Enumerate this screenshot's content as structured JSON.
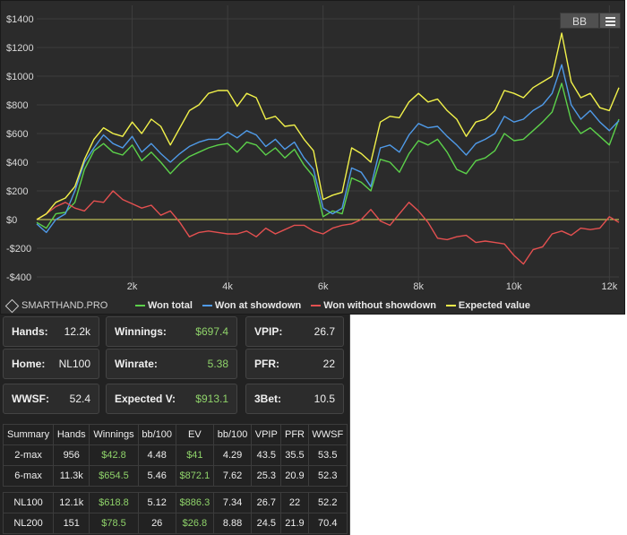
{
  "header": {
    "bb_label": "BB"
  },
  "watermark": "SMARTHAND.PRO",
  "colors": {
    "won_total": "#5cd14a",
    "showdown": "#4f9ae8",
    "no_showdown": "#e45050",
    "ev": "#f1f14a",
    "zero_line": "#e0e060"
  },
  "chart_data": {
    "type": "line",
    "title": "",
    "xlabel": "",
    "ylabel": "",
    "xlim": [
      0,
      12200
    ],
    "ylim": [
      -400,
      1400
    ],
    "x_ticks": [
      2000,
      4000,
      6000,
      8000,
      10000,
      12000
    ],
    "x_tick_labels": [
      "2k",
      "4k",
      "6k",
      "8k",
      "10k",
      "12k"
    ],
    "y_ticks": [
      -400,
      -200,
      0,
      200,
      400,
      600,
      800,
      1000,
      1200,
      1400
    ],
    "y_tick_labels": [
      "-$400",
      "-$200",
      "$0",
      "$200",
      "$400",
      "$600",
      "$800",
      "$1000",
      "$1200",
      "$1400"
    ],
    "grid": true,
    "legend_position": "bottom",
    "x": [
      0,
      200,
      400,
      600,
      800,
      1000,
      1200,
      1400,
      1600,
      1800,
      2000,
      2200,
      2400,
      2600,
      2800,
      3000,
      3200,
      3400,
      3600,
      3800,
      4000,
      4200,
      4400,
      4600,
      4800,
      5000,
      5200,
      5400,
      5600,
      5800,
      6000,
      6200,
      6400,
      6600,
      6800,
      7000,
      7200,
      7400,
      7600,
      7800,
      8000,
      8200,
      8400,
      8600,
      8800,
      9000,
      9200,
      9400,
      9600,
      9800,
      10000,
      10200,
      10400,
      10600,
      10800,
      11000,
      11200,
      11400,
      11600,
      11800,
      12000,
      12200
    ],
    "series": [
      {
        "name": "Won total",
        "color_key": "won_total",
        "values": [
          -20,
          -60,
          40,
          50,
          120,
          350,
          480,
          530,
          470,
          450,
          520,
          410,
          470,
          400,
          320,
          390,
          440,
          470,
          500,
          520,
          530,
          470,
          540,
          520,
          450,
          500,
          430,
          490,
          380,
          300,
          20,
          60,
          40,
          290,
          260,
          200,
          420,
          400,
          330,
          460,
          550,
          520,
          560,
          470,
          350,
          320,
          410,
          430,
          480,
          600,
          550,
          560,
          620,
          680,
          750,
          950,
          690,
          600,
          640,
          580,
          520,
          700
        ]
      },
      {
        "name": "Won at showdown",
        "color_key": "showdown",
        "values": [
          -30,
          -90,
          0,
          40,
          200,
          400,
          500,
          590,
          530,
          500,
          580,
          470,
          530,
          460,
          400,
          460,
          510,
          540,
          560,
          560,
          610,
          570,
          620,
          590,
          510,
          560,
          490,
          540,
          430,
          350,
          80,
          40,
          80,
          360,
          330,
          230,
          500,
          520,
          470,
          590,
          670,
          640,
          650,
          580,
          520,
          450,
          530,
          560,
          600,
          720,
          680,
          700,
          760,
          800,
          880,
          1080,
          800,
          700,
          760,
          680,
          620,
          690
        ]
      },
      {
        "name": "Won without showdown",
        "color_key": "no_showdown",
        "values": [
          0,
          40,
          90,
          120,
          80,
          60,
          130,
          120,
          200,
          140,
          110,
          80,
          100,
          30,
          60,
          -20,
          -120,
          -90,
          -80,
          -90,
          -100,
          -100,
          -80,
          -120,
          -60,
          -100,
          -70,
          -40,
          -40,
          -80,
          -100,
          -60,
          -40,
          -30,
          0,
          70,
          -10,
          -40,
          40,
          120,
          60,
          -20,
          -130,
          -140,
          -120,
          -110,
          -160,
          -150,
          -160,
          -170,
          -250,
          -310,
          -210,
          -190,
          -100,
          -80,
          -110,
          -60,
          -70,
          -60,
          20,
          -20
        ]
      },
      {
        "name": "Expected value",
        "color_key": "ev",
        "values": [
          0,
          40,
          120,
          150,
          230,
          420,
          560,
          640,
          600,
          580,
          680,
          600,
          700,
          650,
          520,
          640,
          760,
          800,
          880,
          900,
          900,
          790,
          880,
          850,
          700,
          720,
          650,
          660,
          560,
          480,
          140,
          170,
          190,
          500,
          460,
          400,
          680,
          720,
          710,
          820,
          880,
          820,
          840,
          760,
          700,
          580,
          680,
          700,
          760,
          900,
          880,
          850,
          920,
          960,
          1000,
          1300,
          960,
          850,
          880,
          780,
          760,
          920
        ]
      }
    ]
  },
  "stats": {
    "hands_label": "Hands:",
    "hands_value": "12.2k",
    "winnings_label": "Winnings:",
    "winnings_value": "$697.4",
    "vpip_label": "VPIP:",
    "vpip_value": "26.7",
    "home_label": "Home:",
    "home_value": "NL100",
    "winrate_label": "Winrate:",
    "winrate_value": "5.38",
    "pfr_label": "PFR:",
    "pfr_value": "22",
    "wwsf_label": "WWSF:",
    "wwsf_value": "52.4",
    "ev_label": "Expected V:",
    "ev_value": "$913.1",
    "threebet_label": "3Bet:",
    "threebet_value": "10.5"
  },
  "summary": {
    "headers": [
      "Summary",
      "Hands",
      "Winnings",
      "bb/100",
      "EV",
      "bb/100",
      "VPIP",
      "PFR",
      "WWSF"
    ],
    "rows": [
      [
        "2-max",
        "956",
        "$42.8",
        "4.48",
        "$41",
        "4.29",
        "43.5",
        "35.5",
        "53.5"
      ],
      [
        "6-max",
        "11.3k",
        "$654.5",
        "5.46",
        "$872.1",
        "7.62",
        "25.3",
        "20.9",
        "52.3"
      ],
      [
        "NL100",
        "12.1k",
        "$618.8",
        "5.12",
        "$886.3",
        "7.34",
        "26.7",
        "22",
        "52.2"
      ],
      [
        "NL200",
        "151",
        "$78.5",
        "26",
        "$26.8",
        "8.88",
        "24.5",
        "21.9",
        "70.4"
      ]
    ]
  }
}
